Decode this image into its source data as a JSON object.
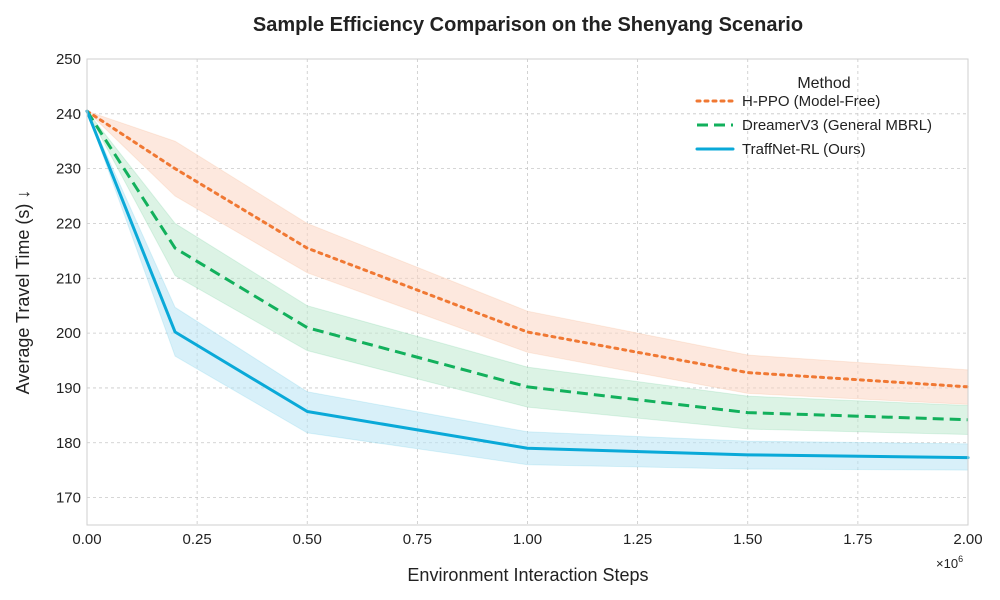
{
  "chart_data": {
    "type": "line",
    "title": "Sample Efficiency Comparison on the Shenyang Scenario",
    "xlabel": "Environment Interaction Steps",
    "ylabel": "Average Travel Time (s) ↓",
    "x_scale_label": "×10",
    "x_scale_exponent": "6",
    "xlim": [
      0,
      2.0
    ],
    "ylim": [
      165,
      250
    ],
    "x_ticks": [
      0.0,
      0.25,
      0.5,
      0.75,
      1.0,
      1.25,
      1.5,
      1.75,
      2.0
    ],
    "x_tick_labels": [
      "0.00",
      "0.25",
      "0.50",
      "0.75",
      "1.00",
      "1.25",
      "1.50",
      "1.75",
      "2.00"
    ],
    "y_ticks": [
      170,
      180,
      190,
      200,
      210,
      220,
      230,
      240,
      250
    ],
    "y_tick_labels": [
      "170",
      "180",
      "190",
      "200",
      "210",
      "220",
      "230",
      "240",
      "250"
    ],
    "grid": true,
    "legend": {
      "title": "Method",
      "placement": "top-right"
    },
    "x": [
      0.0,
      0.2,
      0.5,
      1.0,
      1.5,
      2.0
    ],
    "series": [
      {
        "name": "H-PPO (Model-Free)",
        "color": "#f07833",
        "band_color": "#fbd6c2",
        "dash": "dotted",
        "values": [
          240.5,
          230.0,
          215.5,
          200.2,
          192.8,
          190.2
        ],
        "lower": [
          240.5,
          225.0,
          211.0,
          196.5,
          189.0,
          187.0
        ],
        "upper": [
          240.5,
          235.0,
          220.0,
          204.0,
          196.0,
          193.3
        ]
      },
      {
        "name": "DreamerV3 (General MBRL)",
        "color": "#12b05c",
        "band_color": "#bfe9d0",
        "dash": "dashed",
        "values": [
          240.5,
          215.5,
          201.0,
          190.2,
          185.5,
          184.2
        ],
        "lower": [
          240.5,
          210.5,
          196.8,
          186.5,
          182.5,
          181.5
        ],
        "upper": [
          240.5,
          220.0,
          205.0,
          193.8,
          188.5,
          186.8
        ]
      },
      {
        "name": "TraffNet-RL (Ours)",
        "color": "#0aa9d8",
        "band_color": "#b8e4f4",
        "dash": "solid",
        "values": [
          240.5,
          200.2,
          185.7,
          179.0,
          177.8,
          177.3
        ],
        "lower": [
          240.5,
          195.8,
          181.8,
          176.0,
          175.2,
          175.0
        ],
        "upper": [
          240.5,
          204.7,
          189.3,
          182.0,
          180.3,
          179.8
        ]
      }
    ]
  }
}
